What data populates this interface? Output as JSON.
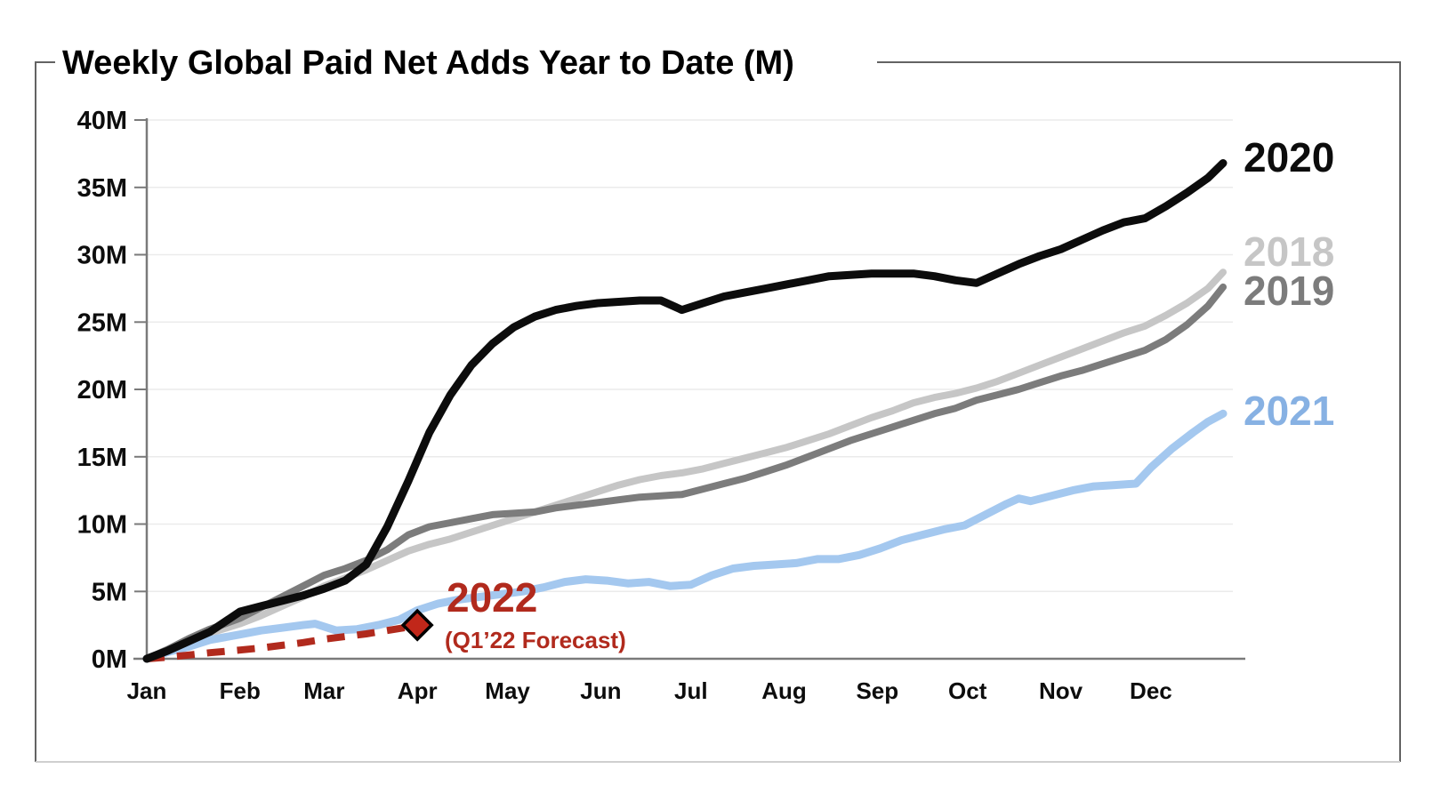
{
  "chart_data": {
    "type": "line",
    "title": "Weekly Global Paid Net Adds Year to Date (M)",
    "ylabel": "",
    "xlabel": "",
    "ylim": [
      0,
      40
    ],
    "grid": "horizontal-light",
    "legend_position": "end-of-line-labels",
    "y_axis": {
      "tick_labels": [
        "0M",
        "5M",
        "10M",
        "15M",
        "20M",
        "25M",
        "30M",
        "35M",
        "40M"
      ],
      "tick_values": [
        0,
        5,
        10,
        15,
        20,
        25,
        30,
        35,
        40
      ]
    },
    "x_axis": {
      "tick_labels": [
        "Jan",
        "Feb",
        "Mar",
        "Apr",
        "May",
        "Jun",
        "Jul",
        "Aug",
        "Sep",
        "Oct",
        "Nov",
        "Dec"
      ],
      "unit": "day-of-year",
      "range_days": [
        0,
        358
      ]
    },
    "series": [
      {
        "name": "2018",
        "label": "2018",
        "color": "#c6c6c6",
        "style": "solid",
        "points": [
          [
            0,
            0
          ],
          [
            7,
            0.6
          ],
          [
            14,
            1.2
          ],
          [
            21,
            1.9
          ],
          [
            31,
            2.6
          ],
          [
            38,
            3.2
          ],
          [
            45,
            3.9
          ],
          [
            52,
            4.6
          ],
          [
            59,
            5.4
          ],
          [
            66,
            6.0
          ],
          [
            73,
            6.6
          ],
          [
            80,
            7.3
          ],
          [
            87,
            8.0
          ],
          [
            94,
            8.5
          ],
          [
            101,
            8.9
          ],
          [
            108,
            9.4
          ],
          [
            115,
            9.9
          ],
          [
            122,
            10.4
          ],
          [
            129,
            10.9
          ],
          [
            136,
            11.4
          ],
          [
            143,
            11.9
          ],
          [
            150,
            12.4
          ],
          [
            157,
            12.9
          ],
          [
            164,
            13.3
          ],
          [
            171,
            13.6
          ],
          [
            178,
            13.8
          ],
          [
            185,
            14.1
          ],
          [
            192,
            14.5
          ],
          [
            199,
            14.9
          ],
          [
            206,
            15.3
          ],
          [
            213,
            15.7
          ],
          [
            220,
            16.2
          ],
          [
            227,
            16.7
          ],
          [
            234,
            17.3
          ],
          [
            241,
            17.9
          ],
          [
            248,
            18.4
          ],
          [
            255,
            19.0
          ],
          [
            262,
            19.4
          ],
          [
            269,
            19.7
          ],
          [
            276,
            20.1
          ],
          [
            283,
            20.6
          ],
          [
            290,
            21.2
          ],
          [
            297,
            21.8
          ],
          [
            304,
            22.4
          ],
          [
            311,
            23.0
          ],
          [
            318,
            23.6
          ],
          [
            325,
            24.2
          ],
          [
            332,
            24.7
          ],
          [
            339,
            25.5
          ],
          [
            346,
            26.4
          ],
          [
            353,
            27.5
          ],
          [
            358,
            28.7
          ]
        ]
      },
      {
        "name": "2019",
        "label": "2019",
        "color": "#7c7c7c",
        "style": "solid",
        "points": [
          [
            0,
            0
          ],
          [
            7,
            0.7
          ],
          [
            14,
            1.5
          ],
          [
            21,
            2.2
          ],
          [
            31,
            3.0
          ],
          [
            38,
            3.8
          ],
          [
            45,
            4.6
          ],
          [
            52,
            5.4
          ],
          [
            59,
            6.2
          ],
          [
            66,
            6.7
          ],
          [
            73,
            7.3
          ],
          [
            80,
            8.1
          ],
          [
            87,
            9.2
          ],
          [
            94,
            9.8
          ],
          [
            101,
            10.1
          ],
          [
            108,
            10.4
          ],
          [
            115,
            10.7
          ],
          [
            122,
            10.8
          ],
          [
            129,
            10.9
          ],
          [
            136,
            11.2
          ],
          [
            143,
            11.4
          ],
          [
            150,
            11.6
          ],
          [
            157,
            11.8
          ],
          [
            164,
            12.0
          ],
          [
            171,
            12.1
          ],
          [
            178,
            12.2
          ],
          [
            185,
            12.6
          ],
          [
            192,
            13.0
          ],
          [
            199,
            13.4
          ],
          [
            206,
            13.9
          ],
          [
            213,
            14.4
          ],
          [
            220,
            15.0
          ],
          [
            227,
            15.6
          ],
          [
            234,
            16.2
          ],
          [
            241,
            16.7
          ],
          [
            248,
            17.2
          ],
          [
            255,
            17.7
          ],
          [
            262,
            18.2
          ],
          [
            269,
            18.6
          ],
          [
            276,
            19.2
          ],
          [
            283,
            19.6
          ],
          [
            290,
            20.0
          ],
          [
            297,
            20.5
          ],
          [
            304,
            21.0
          ],
          [
            311,
            21.4
          ],
          [
            318,
            21.9
          ],
          [
            325,
            22.4
          ],
          [
            332,
            22.9
          ],
          [
            339,
            23.7
          ],
          [
            346,
            24.8
          ],
          [
            353,
            26.2
          ],
          [
            358,
            27.6
          ]
        ]
      },
      {
        "name": "2020",
        "label": "2020",
        "color": "#0c0c0c",
        "style": "solid",
        "points": [
          [
            0,
            0
          ],
          [
            7,
            0.6
          ],
          [
            14,
            1.3
          ],
          [
            21,
            2.0
          ],
          [
            31,
            3.5
          ],
          [
            38,
            3.9
          ],
          [
            45,
            4.3
          ],
          [
            52,
            4.7
          ],
          [
            59,
            5.2
          ],
          [
            66,
            5.8
          ],
          [
            73,
            7.0
          ],
          [
            80,
            9.8
          ],
          [
            87,
            13.2
          ],
          [
            94,
            16.8
          ],
          [
            101,
            19.6
          ],
          [
            108,
            21.8
          ],
          [
            115,
            23.4
          ],
          [
            122,
            24.6
          ],
          [
            129,
            25.4
          ],
          [
            136,
            25.9
          ],
          [
            143,
            26.2
          ],
          [
            150,
            26.4
          ],
          [
            157,
            26.5
          ],
          [
            164,
            26.6
          ],
          [
            171,
            26.6
          ],
          [
            178,
            25.9
          ],
          [
            185,
            26.4
          ],
          [
            192,
            26.9
          ],
          [
            199,
            27.2
          ],
          [
            206,
            27.5
          ],
          [
            213,
            27.8
          ],
          [
            220,
            28.1
          ],
          [
            227,
            28.4
          ],
          [
            234,
            28.5
          ],
          [
            241,
            28.6
          ],
          [
            248,
            28.6
          ],
          [
            255,
            28.6
          ],
          [
            262,
            28.4
          ],
          [
            269,
            28.1
          ],
          [
            276,
            27.9
          ],
          [
            283,
            28.6
          ],
          [
            290,
            29.3
          ],
          [
            297,
            29.9
          ],
          [
            304,
            30.4
          ],
          [
            311,
            31.1
          ],
          [
            318,
            31.8
          ],
          [
            325,
            32.4
          ],
          [
            332,
            32.7
          ],
          [
            339,
            33.6
          ],
          [
            346,
            34.6
          ],
          [
            353,
            35.7
          ],
          [
            358,
            36.8
          ]
        ]
      },
      {
        "name": "2021",
        "label": "2021",
        "color": "#a4c8ef",
        "label_color": "#87b1e3",
        "style": "solid",
        "points": [
          [
            0,
            0
          ],
          [
            7,
            0.5
          ],
          [
            14,
            0.9
          ],
          [
            21,
            1.4
          ],
          [
            31,
            1.8
          ],
          [
            38,
            2.1
          ],
          [
            45,
            2.3
          ],
          [
            52,
            2.5
          ],
          [
            56,
            2.6
          ],
          [
            63,
            2.1
          ],
          [
            70,
            2.2
          ],
          [
            77,
            2.5
          ],
          [
            84,
            2.9
          ],
          [
            90,
            3.6
          ],
          [
            97,
            4.1
          ],
          [
            104,
            4.4
          ],
          [
            111,
            4.6
          ],
          [
            118,
            4.8
          ],
          [
            125,
            5.0
          ],
          [
            132,
            5.3
          ],
          [
            139,
            5.7
          ],
          [
            146,
            5.9
          ],
          [
            153,
            5.8
          ],
          [
            160,
            5.6
          ],
          [
            167,
            5.7
          ],
          [
            174,
            5.4
          ],
          [
            181,
            5.5
          ],
          [
            188,
            6.2
          ],
          [
            195,
            6.7
          ],
          [
            202,
            6.9
          ],
          [
            209,
            7.0
          ],
          [
            216,
            7.1
          ],
          [
            223,
            7.4
          ],
          [
            230,
            7.4
          ],
          [
            237,
            7.7
          ],
          [
            244,
            8.2
          ],
          [
            251,
            8.8
          ],
          [
            258,
            9.2
          ],
          [
            265,
            9.6
          ],
          [
            272,
            9.9
          ],
          [
            279,
            10.7
          ],
          [
            286,
            11.5
          ],
          [
            290,
            11.9
          ],
          [
            294,
            11.7
          ],
          [
            301,
            12.1
          ],
          [
            308,
            12.5
          ],
          [
            315,
            12.8
          ],
          [
            322,
            12.9
          ],
          [
            329,
            13.0
          ],
          [
            334,
            14.2
          ],
          [
            341,
            15.6
          ],
          [
            348,
            16.8
          ],
          [
            353,
            17.6
          ],
          [
            358,
            18.2
          ]
        ]
      },
      {
        "name": "2022",
        "label": "2022",
        "color": "#b12a1d",
        "style": "dashed",
        "annotation": "(Q1’22 Forecast)",
        "marker": {
          "shape": "diamond",
          "day": 90,
          "value": 2.5,
          "fill": "#c1271a",
          "outline": "#000000"
        },
        "points": [
          [
            0,
            0
          ],
          [
            7,
            0.12
          ],
          [
            14,
            0.28
          ],
          [
            21,
            0.45
          ],
          [
            31,
            0.65
          ],
          [
            38,
            0.8
          ],
          [
            45,
            1.0
          ],
          [
            52,
            1.2
          ],
          [
            59,
            1.45
          ],
          [
            66,
            1.65
          ],
          [
            73,
            1.85
          ],
          [
            80,
            2.1
          ],
          [
            87,
            2.35
          ],
          [
            90,
            2.5
          ]
        ]
      }
    ]
  }
}
